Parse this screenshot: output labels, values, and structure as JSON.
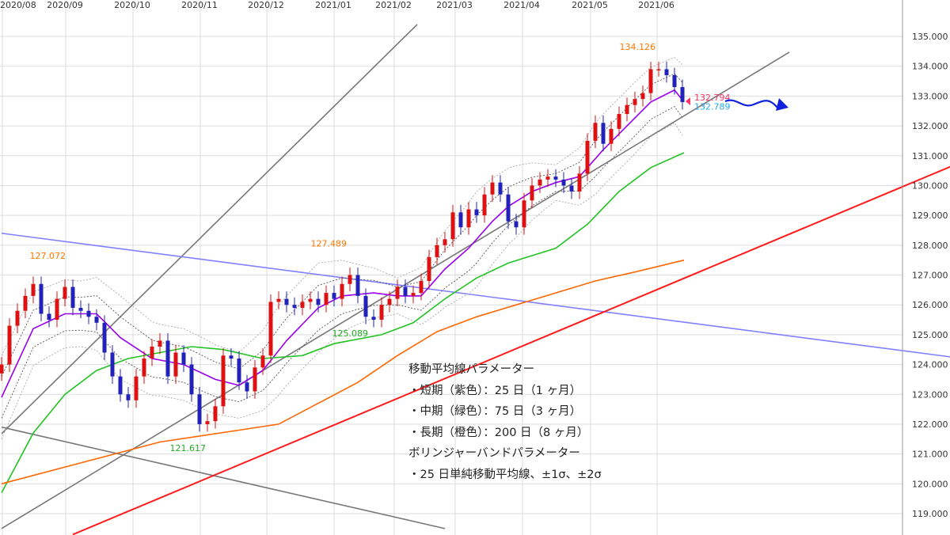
{
  "chart_data": {
    "type": "candlestick",
    "x_tick_labels": [
      "2020/08",
      "2020/09",
      "2020/10",
      "2020/11",
      "2020/12",
      "2021/01",
      "2021/02",
      "2021/03",
      "2021/04",
      "2021/05",
      "2021/06"
    ],
    "y_tick_labels": [
      "135.000",
      "134.000",
      "133.000",
      "132.000",
      "131.000",
      "130.000",
      "129.000",
      "128.000",
      "127.000",
      "126.000",
      "125.000",
      "124.000",
      "123.000",
      "122.000",
      "121.000",
      "120.000",
      "119.000"
    ],
    "ylim": [
      118.3,
      136.2
    ],
    "grid": true,
    "closes": [
      124.0,
      125.3,
      125.8,
      126.3,
      126.7,
      125.7,
      125.5,
      126.2,
      126.6,
      125.9,
      125.8,
      125.6,
      125.4,
      124.4,
      123.6,
      123.0,
      122.8,
      123.6,
      124.2,
      124.6,
      124.8,
      123.6,
      124.4,
      124.0,
      123.0,
      122.0,
      122.1,
      122.6,
      124.3,
      124.2,
      123.4,
      123.1,
      123.9,
      124.3,
      126.1,
      126.2,
      126.0,
      125.9,
      126.1,
      126.2,
      126.0,
      126.4,
      126.2,
      126.7,
      127.0,
      126.3,
      125.6,
      125.5,
      126.0,
      126.2,
      126.6,
      126.3,
      126.4,
      126.8,
      127.6,
      128.0,
      128.2,
      129.1,
      128.6,
      129.2,
      129.0,
      129.7,
      130.1,
      129.7,
      128.8,
      128.6,
      129.5,
      130.0,
      130.2,
      130.3,
      130.2,
      130.0,
      129.8,
      130.4,
      131.5,
      132.1,
      131.4,
      131.9,
      132.4,
      132.7,
      132.9,
      133.1,
      133.9,
      133.9,
      133.7,
      133.3,
      132.8
    ],
    "series": [
      {
        "key": "ma25",
        "color": "#9900ee",
        "points": [
          [
            0,
            122.9
          ],
          [
            4,
            125.2
          ],
          [
            6,
            125.45
          ],
          [
            8,
            125.7
          ],
          [
            12,
            125.7
          ],
          [
            15,
            124.9
          ],
          [
            19,
            124.2
          ],
          [
            23,
            124.0
          ],
          [
            27,
            123.5
          ],
          [
            30,
            123.3
          ],
          [
            33,
            123.8
          ],
          [
            36,
            124.8
          ],
          [
            40,
            125.9
          ],
          [
            43,
            126.3
          ],
          [
            47,
            126.4
          ],
          [
            50,
            126.3
          ],
          [
            53,
            126.3
          ],
          [
            56,
            127.2
          ],
          [
            59,
            127.9
          ],
          [
            62,
            128.8
          ],
          [
            64,
            129.3
          ],
          [
            67,
            129.8
          ],
          [
            70,
            130.1
          ],
          [
            73,
            130.3
          ],
          [
            76,
            131.2
          ],
          [
            79,
            132.0
          ],
          [
            82,
            132.8
          ],
          [
            85,
            133.2
          ],
          [
            86.2,
            132.8
          ]
        ]
      },
      {
        "key": "ma75",
        "color": "#22c322",
        "points": [
          [
            0,
            119.7
          ],
          [
            4,
            121.7
          ],
          [
            8,
            123.0
          ],
          [
            12,
            123.8
          ],
          [
            16,
            124.2
          ],
          [
            20,
            124.4
          ],
          [
            24,
            124.6
          ],
          [
            28,
            124.5
          ],
          [
            33,
            124.2
          ],
          [
            38,
            124.3
          ],
          [
            42,
            124.7
          ],
          [
            48,
            125.0
          ],
          [
            52,
            125.4
          ],
          [
            56,
            126.2
          ],
          [
            60,
            126.9
          ],
          [
            64,
            127.4
          ],
          [
            70,
            127.9
          ],
          [
            74,
            128.7
          ],
          [
            78,
            129.8
          ],
          [
            82,
            130.6
          ],
          [
            86.2,
            131.1
          ]
        ]
      },
      {
        "key": "ma200",
        "color": "#ff6600",
        "points": [
          [
            0,
            120.0
          ],
          [
            10,
            120.7
          ],
          [
            20,
            121.4
          ],
          [
            30,
            121.8
          ],
          [
            35,
            122.0
          ],
          [
            40,
            122.7
          ],
          [
            45,
            123.4
          ],
          [
            50,
            124.3
          ],
          [
            55,
            125.1
          ],
          [
            60,
            125.6
          ],
          [
            65,
            126.0
          ],
          [
            70,
            126.4
          ],
          [
            75,
            126.8
          ],
          [
            80,
            127.1
          ],
          [
            86.2,
            127.5
          ]
        ]
      }
    ],
    "bollinger_sigma": [
      [
        0,
        0.7
      ],
      [
        5,
        0.6
      ],
      [
        10,
        0.55
      ],
      [
        15,
        0.7
      ],
      [
        20,
        0.6
      ],
      [
        25,
        0.6
      ],
      [
        30,
        0.55
      ],
      [
        35,
        0.75
      ],
      [
        40,
        0.75
      ],
      [
        45,
        0.5
      ],
      [
        50,
        0.3
      ],
      [
        55,
        0.6
      ],
      [
        60,
        0.8
      ],
      [
        65,
        0.6
      ],
      [
        70,
        0.3
      ],
      [
        75,
        0.6
      ],
      [
        80,
        0.6
      ],
      [
        85,
        0.55
      ],
      [
        86.2,
        0.6
      ]
    ],
    "trend_lines": [
      {
        "color": "#777777",
        "from": [
          0,
          121.68
        ],
        "to": [
          52.5,
          135.4
        ]
      },
      {
        "color": "#777777",
        "from": [
          0,
          118.5
        ],
        "to": [
          99.5,
          134.47
        ]
      },
      {
        "color": "#777777",
        "from": [
          0,
          121.9
        ],
        "to": [
          56,
          118.5
        ]
      },
      {
        "color": "#8080ff",
        "from": [
          0,
          128.4
        ],
        "to": [
          120,
          124.25
        ]
      },
      {
        "color": "#ff1a1a",
        "from": [
          9,
          118.3
        ],
        "to": [
          120,
          130.65
        ]
      }
    ],
    "annotations": [
      {
        "text": "127.072",
        "color": "#ff7700",
        "at": [
          8.1,
          127.55
        ],
        "anchor": "end"
      },
      {
        "text": "121.617",
        "color": "#22aa22",
        "at": [
          25.8,
          121.1
        ],
        "anchor": "end"
      },
      {
        "text": "127.489",
        "color": "#ff7700",
        "at": [
          43.6,
          127.95
        ],
        "anchor": "end"
      },
      {
        "text": "125.089",
        "color": "#22aa22",
        "at": [
          46.3,
          124.95
        ],
        "anchor": "end"
      },
      {
        "text": "134.126",
        "color": "#ff7700",
        "at": [
          82.6,
          134.55
        ],
        "anchor": "end"
      },
      {
        "text": "132.794",
        "color": "#ff3366",
        "at": [
          87.5,
          132.85
        ],
        "anchor": "start"
      },
      {
        "text": "132.789",
        "color": "#22aaee",
        "at": [
          87.5,
          132.55
        ],
        "anchor": "start"
      }
    ],
    "up_color": "#dd1111",
    "down_color": "#2222bb"
  },
  "notes": {
    "heading1": "移動平均線パラメーター",
    "line1": "・短期（紫色）：25 日（1 ヶ月）",
    "line2": "・中期（緑色）：75 日（3 ヶ月）",
    "line3": "・長期（橙色）：200 日（8 ヶ月）",
    "heading2": "ボリンジャーバンドパラメーター",
    "line4": "・25 日単純移動平均線、±1σ、±2σ"
  }
}
